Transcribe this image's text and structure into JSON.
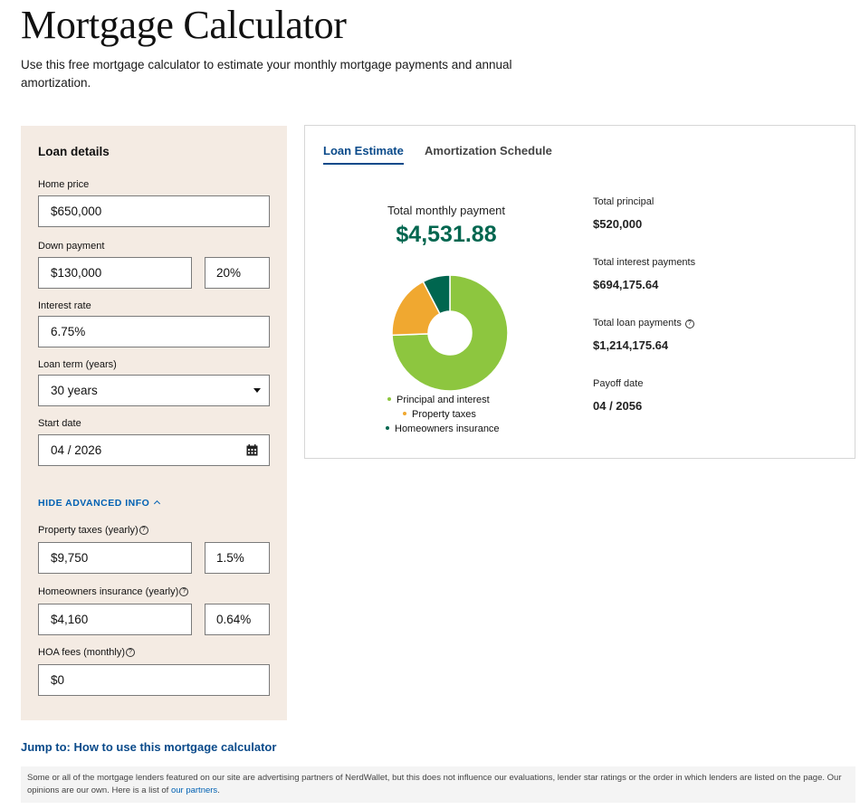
{
  "page": {
    "title": "Mortgage Calculator",
    "intro": "Use this free mortgage calculator to estimate your monthly mortgage payments and annual amortization."
  },
  "loan_details": {
    "heading": "Loan details",
    "home_price_label": "Home price",
    "home_price_value": "$650,000",
    "down_payment_label": "Down payment",
    "down_payment_value": "$130,000",
    "down_payment_percent": "20%",
    "interest_rate_label": "Interest rate",
    "interest_rate_value": "6.75%",
    "loan_term_label": "Loan term (years)",
    "loan_term_value": "30 years",
    "start_date_label": "Start date",
    "start_date_value": "04 / 2026",
    "advanced_toggle": "HIDE ADVANCED INFO",
    "property_taxes_label": "Property taxes (yearly)",
    "property_taxes_value": "$9,750",
    "property_taxes_percent": "1.5%",
    "insurance_label": "Homeowners insurance (yearly)",
    "insurance_value": "$4,160",
    "insurance_percent": "0.64%",
    "hoa_label": "HOA fees (monthly)",
    "hoa_value": "$0",
    "help_glyph": "?"
  },
  "estimate": {
    "tabs": [
      "Loan Estimate",
      "Amortization Schedule"
    ],
    "monthly_label": "Total monthly payment",
    "monthly_value": "$4,531.88",
    "breakdown": [
      {
        "label": "Principal and interest",
        "value": 3372.71,
        "color": "#8dc63f"
      },
      {
        "label": "Property taxes",
        "value": 812.5,
        "color": "#f0a830"
      },
      {
        "label": "Homeowners insurance",
        "value": 346.67,
        "color": "#00664f"
      }
    ],
    "stats": {
      "principal_label": "Total principal",
      "principal_value": "$520,000",
      "interest_label": "Total interest payments",
      "interest_value": "$694,175.64",
      "loan_label": "Total loan payments",
      "loan_value": "$1,214,175.64",
      "payoff_label": "Payoff date",
      "payoff_value": "04 / 2056"
    }
  },
  "footer": {
    "jump_link": "Jump to: How to use this mortgage calculator",
    "disclaimer": "Some or all of the mortgage lenders featured on our site are advertising partners of NerdWallet, but this does not influence our evaluations, lender star ratings or the order in which lenders are listed on the page. Our opinions are our own. Here is a list of ",
    "partners_link": "our partners",
    "disclaimer_end": "."
  }
}
